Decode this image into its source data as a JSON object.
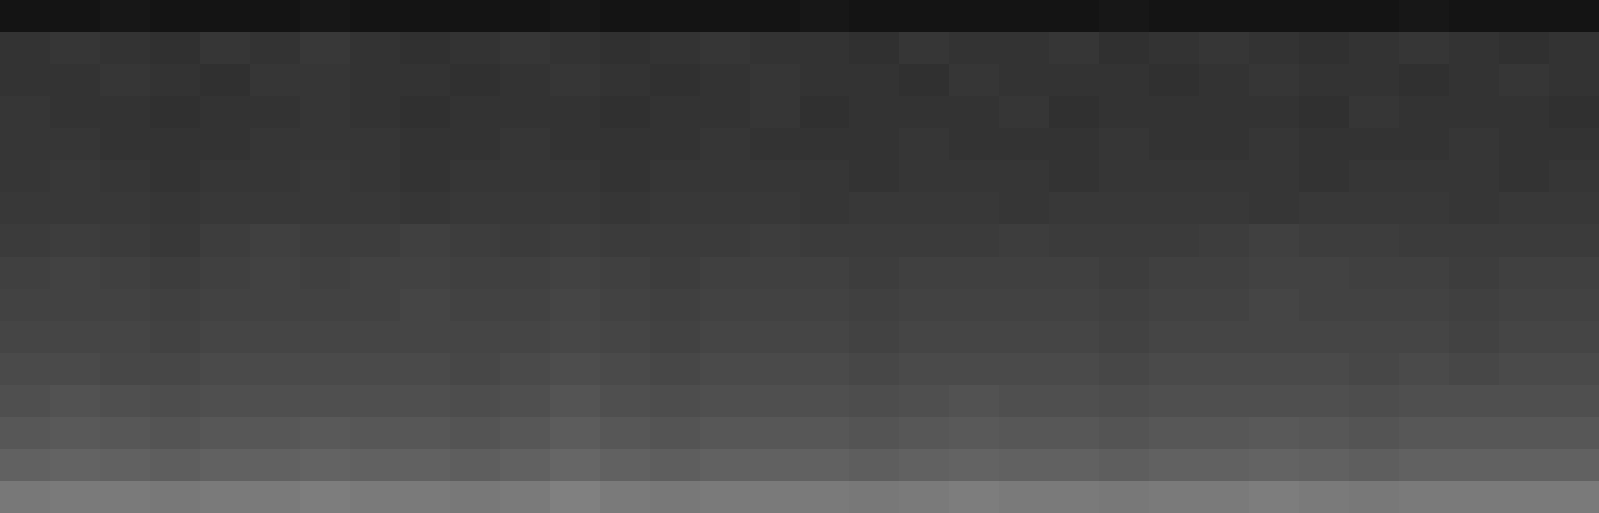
{
  "chart_data": {
    "type": "heatmap",
    "tick_labels": false,
    "zlim": [
      0,
      1
    ],
    "cells": [
      [
        0.08,
        0.08,
        0.09,
        0.08,
        0.08,
        0.08,
        0.09,
        0.08,
        0.08,
        0.08,
        0.08,
        0.09,
        0.08,
        0.08,
        0.08,
        0.08,
        0.09,
        0.08,
        0.08,
        0.08,
        0.08,
        0.08,
        0.09,
        0.08,
        0.08,
        0.08,
        0.08,
        0.08,
        0.09,
        0.08,
        0.08,
        0.08
      ],
      [
        0.2,
        0.21,
        0.2,
        0.19,
        0.21,
        0.2,
        0.22,
        0.2,
        0.19,
        0.2,
        0.21,
        0.2,
        0.19,
        0.2,
        0.21,
        0.2,
        0.2,
        0.19,
        0.21,
        0.2,
        0.2,
        0.21,
        0.19,
        0.2,
        0.21,
        0.2,
        0.19,
        0.2,
        0.21,
        0.2,
        0.19,
        0.2
      ],
      [
        0.2,
        0.2,
        0.21,
        0.2,
        0.19,
        0.21,
        0.21,
        0.2,
        0.2,
        0.19,
        0.2,
        0.21,
        0.2,
        0.19,
        0.2,
        0.21,
        0.2,
        0.2,
        0.19,
        0.21,
        0.2,
        0.2,
        0.2,
        0.19,
        0.2,
        0.21,
        0.2,
        0.2,
        0.19,
        0.2,
        0.21,
        0.2
      ],
      [
        0.21,
        0.2,
        0.2,
        0.19,
        0.2,
        0.2,
        0.21,
        0.2,
        0.19,
        0.2,
        0.2,
        0.2,
        0.19,
        0.2,
        0.2,
        0.21,
        0.19,
        0.2,
        0.2,
        0.2,
        0.21,
        0.19,
        0.2,
        0.2,
        0.2,
        0.2,
        0.19,
        0.21,
        0.2,
        0.2,
        0.2,
        0.19
      ],
      [
        0.21,
        0.21,
        0.2,
        0.2,
        0.2,
        0.21,
        0.21,
        0.21,
        0.2,
        0.2,
        0.21,
        0.2,
        0.2,
        0.2,
        0.21,
        0.2,
        0.2,
        0.2,
        0.21,
        0.2,
        0.2,
        0.2,
        0.21,
        0.2,
        0.2,
        0.21,
        0.2,
        0.2,
        0.2,
        0.21,
        0.2,
        0.2
      ],
      [
        0.21,
        0.22,
        0.21,
        0.2,
        0.21,
        0.21,
        0.22,
        0.21,
        0.2,
        0.21,
        0.21,
        0.21,
        0.2,
        0.21,
        0.21,
        0.21,
        0.21,
        0.2,
        0.21,
        0.21,
        0.21,
        0.2,
        0.21,
        0.21,
        0.21,
        0.21,
        0.2,
        0.21,
        0.21,
        0.21,
        0.2,
        0.21
      ],
      [
        0.22,
        0.22,
        0.22,
        0.21,
        0.22,
        0.22,
        0.22,
        0.22,
        0.21,
        0.22,
        0.22,
        0.22,
        0.21,
        0.22,
        0.22,
        0.22,
        0.21,
        0.22,
        0.22,
        0.22,
        0.21,
        0.22,
        0.22,
        0.22,
        0.22,
        0.21,
        0.22,
        0.22,
        0.22,
        0.21,
        0.22,
        0.22
      ],
      [
        0.23,
        0.24,
        0.23,
        0.22,
        0.24,
        0.25,
        0.24,
        0.24,
        0.25,
        0.24,
        0.23,
        0.24,
        0.23,
        0.23,
        0.23,
        0.24,
        0.23,
        0.23,
        0.23,
        0.23,
        0.24,
        0.23,
        0.23,
        0.23,
        0.24,
        0.25,
        0.24,
        0.24,
        0.23,
        0.23,
        0.23,
        0.23
      ],
      [
        0.25,
        0.26,
        0.25,
        0.24,
        0.25,
        0.26,
        0.25,
        0.26,
        0.26,
        0.25,
        0.25,
        0.26,
        0.25,
        0.24,
        0.25,
        0.25,
        0.25,
        0.24,
        0.25,
        0.25,
        0.25,
        0.25,
        0.24,
        0.25,
        0.25,
        0.26,
        0.26,
        0.25,
        0.25,
        0.24,
        0.25,
        0.25
      ],
      [
        0.26,
        0.26,
        0.26,
        0.25,
        0.26,
        0.26,
        0.26,
        0.26,
        0.27,
        0.26,
        0.26,
        0.27,
        0.26,
        0.25,
        0.26,
        0.26,
        0.26,
        0.25,
        0.26,
        0.26,
        0.26,
        0.26,
        0.25,
        0.26,
        0.26,
        0.27,
        0.26,
        0.26,
        0.26,
        0.25,
        0.26,
        0.26
      ],
      [
        0.27,
        0.27,
        0.27,
        0.26,
        0.27,
        0.27,
        0.27,
        0.27,
        0.27,
        0.27,
        0.27,
        0.28,
        0.27,
        0.26,
        0.27,
        0.27,
        0.27,
        0.26,
        0.27,
        0.27,
        0.27,
        0.27,
        0.26,
        0.27,
        0.27,
        0.27,
        0.27,
        0.27,
        0.27,
        0.26,
        0.27,
        0.27
      ],
      [
        0.29,
        0.29,
        0.28,
        0.28,
        0.29,
        0.29,
        0.29,
        0.29,
        0.29,
        0.28,
        0.29,
        0.3,
        0.29,
        0.28,
        0.29,
        0.29,
        0.29,
        0.28,
        0.29,
        0.29,
        0.29,
        0.29,
        0.28,
        0.29,
        0.29,
        0.29,
        0.29,
        0.28,
        0.29,
        0.28,
        0.29,
        0.29
      ],
      [
        0.31,
        0.32,
        0.31,
        0.3,
        0.31,
        0.31,
        0.31,
        0.31,
        0.31,
        0.3,
        0.31,
        0.33,
        0.31,
        0.3,
        0.31,
        0.31,
        0.31,
        0.3,
        0.31,
        0.32,
        0.31,
        0.31,
        0.3,
        0.31,
        0.31,
        0.31,
        0.31,
        0.3,
        0.31,
        0.31,
        0.31,
        0.31
      ],
      [
        0.34,
        0.35,
        0.34,
        0.33,
        0.34,
        0.34,
        0.35,
        0.34,
        0.34,
        0.33,
        0.34,
        0.36,
        0.34,
        0.33,
        0.34,
        0.34,
        0.34,
        0.33,
        0.34,
        0.35,
        0.34,
        0.34,
        0.33,
        0.34,
        0.34,
        0.35,
        0.34,
        0.33,
        0.34,
        0.34,
        0.34,
        0.34
      ],
      [
        0.38,
        0.39,
        0.38,
        0.37,
        0.38,
        0.38,
        0.39,
        0.38,
        0.38,
        0.37,
        0.38,
        0.4,
        0.38,
        0.37,
        0.38,
        0.38,
        0.38,
        0.37,
        0.38,
        0.39,
        0.38,
        0.38,
        0.37,
        0.38,
        0.38,
        0.39,
        0.38,
        0.37,
        0.38,
        0.38,
        0.38,
        0.38
      ],
      [
        0.47,
        0.48,
        0.48,
        0.47,
        0.48,
        0.48,
        0.49,
        0.48,
        0.48,
        0.47,
        0.48,
        0.5,
        0.48,
        0.47,
        0.48,
        0.48,
        0.48,
        0.47,
        0.48,
        0.49,
        0.48,
        0.48,
        0.47,
        0.48,
        0.48,
        0.49,
        0.48,
        0.47,
        0.48,
        0.48,
        0.48,
        0.48
      ]
    ]
  }
}
